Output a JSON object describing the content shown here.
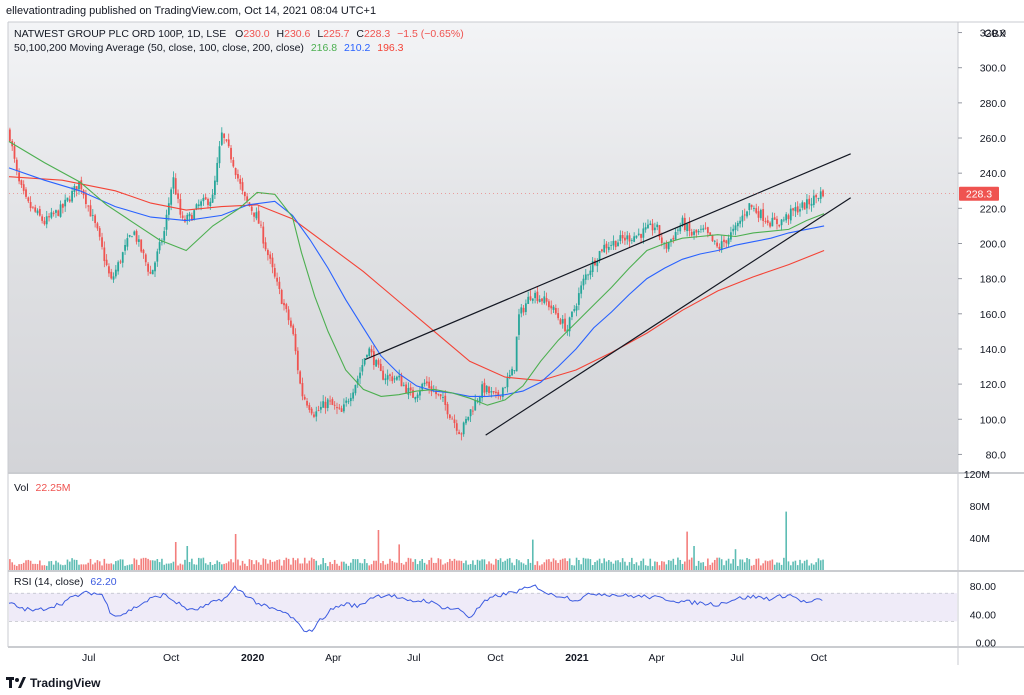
{
  "header": {
    "publisher": "ellevationtrading published on TradingView.com, Oct 14, 2021 08:04 UTC+1"
  },
  "legend": {
    "symbol": "NATWEST GROUP PLC ORD 100P, 1D, LSE",
    "o_label": "O",
    "o_value": "230.0",
    "h_label": "H",
    "h_value": "230.6",
    "l_label": "L",
    "l_value": "225.7",
    "c_label": "C",
    "c_value": "228.3",
    "change": "−1.5 (−0.65%)",
    "ma_label": "50,100,200 Moving Average (50, close, 100, close, 200, close)",
    "ma50": "216.8",
    "ma100": "210.2",
    "ma200": "196.3",
    "vol_label": "Vol",
    "vol_value": "22.25M",
    "rsi_label": "RSI (14, close)",
    "rsi_value": "62.20"
  },
  "footer": {
    "brand": "TradingView"
  },
  "colors": {
    "up": "#26a69a",
    "down": "#ef5350",
    "ma50": "#4caf50",
    "ma100": "#2962ff",
    "ma200": "#f44336",
    "rsi": "#3c5be0",
    "trend": "#131722"
  },
  "chart_data": {
    "type": "candlestick",
    "price_axis": {
      "unit": "GBX",
      "ticks": [
        "320.0",
        "300.0",
        "280.0",
        "260.0",
        "240.0",
        "220.0",
        "200.0",
        "180.0",
        "160.0",
        "140.0",
        "120.0",
        "100.0",
        "80.0"
      ],
      "last_price_label": "228.3",
      "range": [
        70,
        326
      ]
    },
    "volume_axis": {
      "ticks": [
        "120M",
        "80M",
        "40M"
      ],
      "range": [
        0,
        120
      ]
    },
    "rsi_axis": {
      "ticks": [
        "80.00",
        "40.00",
        "0.00"
      ],
      "range": [
        -5,
        100
      ],
      "band": [
        30,
        70
      ]
    },
    "time_axis": {
      "labels": [
        "Jul",
        "Oct",
        "2020",
        "Apr",
        "Jul",
        "Oct",
        "2021",
        "Apr",
        "Jul",
        "Oct"
      ],
      "label_positions_day": [
        90,
        183,
        275,
        366,
        457,
        549,
        641,
        731,
        822,
        914
      ],
      "range_days": [
        0,
        1070
      ]
    },
    "price": {
      "x": [
        0,
        10,
        20,
        40,
        60,
        80,
        100,
        115,
        125,
        140,
        160,
        175,
        185,
        195,
        205,
        215,
        230,
        240,
        252,
        265,
        280,
        300,
        320,
        330,
        345,
        360,
        375,
        395,
        405,
        420,
        440,
        455,
        470,
        490,
        500,
        510,
        520,
        535,
        550,
        570,
        575,
        590,
        600,
        610,
        620,
        630,
        650,
        670,
        690,
        710,
        730,
        740,
        760,
        770,
        785,
        800,
        820,
        835,
        845,
        860,
        870,
        880,
        890,
        900,
        910,
        920
      ],
      "y": [
        264,
        236,
        223,
        212,
        220,
        235,
        206,
        178,
        190,
        208,
        182,
        206,
        238,
        212,
        215,
        222,
        226,
        262,
        248,
        226,
        215,
        180,
        150,
        115,
        103,
        110,
        103,
        125,
        141,
        125,
        123,
        113,
        121,
        110,
        101,
        92,
        104,
        118,
        112,
        128,
        158,
        172,
        169,
        165,
        158,
        151,
        181,
        198,
        202,
        205,
        210,
        197,
        212,
        205,
        207,
        197,
        208,
        222,
        218,
        212,
        212,
        216,
        220,
        222,
        226,
        230
      ]
    },
    "trendlines": [
      {
        "from": [
          402,
          134
        ],
        "to": [
          950,
          251
        ]
      },
      {
        "from": [
          538,
          91
        ],
        "to": [
          950,
          226
        ]
      }
    ],
    "moving_averages": {
      "ma50": {
        "x": [
          0,
          40,
          80,
          110,
          140,
          170,
          200,
          230,
          260,
          280,
          300,
          320,
          330,
          345,
          360,
          380,
          400,
          420,
          440,
          460,
          480,
          500,
          520,
          540,
          560,
          580,
          600,
          620,
          640,
          660,
          680,
          700,
          720,
          740,
          760,
          780,
          800,
          820,
          840,
          860,
          880,
          900,
          920
        ],
        "y": [
          258,
          246,
          235,
          222,
          212,
          202,
          196,
          210,
          220,
          229,
          228,
          215,
          195,
          170,
          150,
          128,
          117,
          113,
          114,
          116,
          117,
          115,
          112,
          108,
          111,
          119,
          133,
          145,
          155,
          165,
          175,
          186,
          196,
          200,
          203,
          204,
          205,
          204,
          206,
          207,
          208,
          213,
          217
        ]
      },
      "ma100": {
        "x": [
          0,
          40,
          80,
          120,
          160,
          200,
          240,
          270,
          300,
          320,
          340,
          360,
          380,
          400,
          420,
          440,
          460,
          480,
          500,
          520,
          540,
          560,
          580,
          600,
          620,
          640,
          660,
          680,
          700,
          720,
          740,
          760,
          780,
          800,
          820,
          840,
          860,
          880,
          900,
          920
        ],
        "y": [
          243,
          236,
          230,
          221,
          215,
          213,
          216,
          222,
          224,
          216,
          202,
          186,
          168,
          152,
          136,
          126,
          119,
          116,
          115,
          113,
          113,
          114,
          116,
          121,
          130,
          140,
          152,
          161,
          171,
          180,
          186,
          191,
          194,
          196,
          199,
          201,
          203,
          206,
          208,
          210
        ]
      },
      "ma200": {
        "x": [
          0,
          60,
          120,
          160,
          200,
          240,
          280,
          320,
          360,
          400,
          440,
          480,
          520,
          560,
          600,
          640,
          680,
          720,
          760,
          800,
          840,
          880,
          920
        ],
        "y": [
          238,
          236,
          230,
          223,
          219,
          221,
          222,
          214,
          199,
          184,
          167,
          150,
          133,
          124,
          122,
          128,
          138,
          149,
          162,
          173,
          181,
          188,
          196
        ]
      }
    },
    "rsi": {
      "x": [
        0,
        15,
        30,
        45,
        60,
        75,
        90,
        105,
        115,
        125,
        140,
        160,
        175,
        190,
        205,
        220,
        235,
        245,
        255,
        265,
        280,
        295,
        310,
        320,
        330,
        340,
        350,
        365,
        380,
        395,
        410,
        430,
        450,
        470,
        490,
        510,
        520,
        535,
        550,
        565,
        580,
        595,
        610,
        625,
        640,
        660,
        680,
        700,
        720,
        740,
        760,
        780,
        800,
        820,
        840,
        860,
        880,
        900,
        920
      ],
      "y": [
        56,
        48,
        45,
        50,
        56,
        66,
        71,
        68,
        42,
        38,
        48,
        62,
        68,
        56,
        45,
        50,
        60,
        63,
        78,
        70,
        56,
        48,
        43,
        35,
        20,
        15,
        30,
        48,
        55,
        51,
        65,
        68,
        58,
        60,
        50,
        46,
        35,
        56,
        66,
        70,
        75,
        80,
        68,
        66,
        60,
        70,
        68,
        66,
        65,
        62,
        58,
        56,
        54,
        62,
        65,
        62,
        68,
        56,
        62
      ]
    },
    "volume": {
      "baseline_m": 12,
      "spikes": [
        {
          "day": 255,
          "value": 45
        },
        {
          "day": 186,
          "value": 35
        },
        {
          "day": 200,
          "value": 30
        },
        {
          "day": 415,
          "value": 50
        },
        {
          "day": 440,
          "value": 32
        },
        {
          "day": 590,
          "value": 38
        },
        {
          "day": 765,
          "value": 48
        },
        {
          "day": 772,
          "value": 30
        },
        {
          "day": 875,
          "value": 73
        },
        {
          "day": 820,
          "value": 26
        }
      ]
    }
  }
}
